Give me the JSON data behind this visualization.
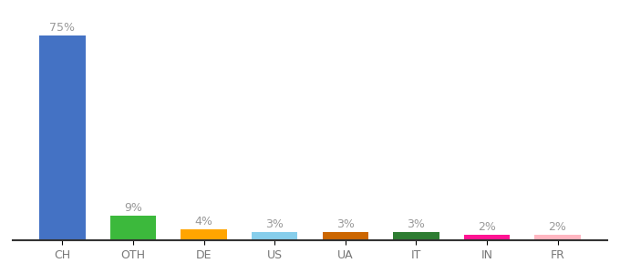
{
  "categories": [
    "CH",
    "OTH",
    "DE",
    "US",
    "UA",
    "IT",
    "IN",
    "FR"
  ],
  "values": [
    75,
    9,
    4,
    3,
    3,
    3,
    2,
    2
  ],
  "bar_colors": [
    "#4472C4",
    "#3CB93C",
    "#FFA500",
    "#87CEEB",
    "#CC6600",
    "#2E7D32",
    "#FF1493",
    "#FFB6C1"
  ],
  "ylim": [
    0,
    83
  ],
  "background_color": "#ffffff",
  "label_fontsize": 9,
  "tick_fontsize": 9,
  "bar_width": 0.65
}
